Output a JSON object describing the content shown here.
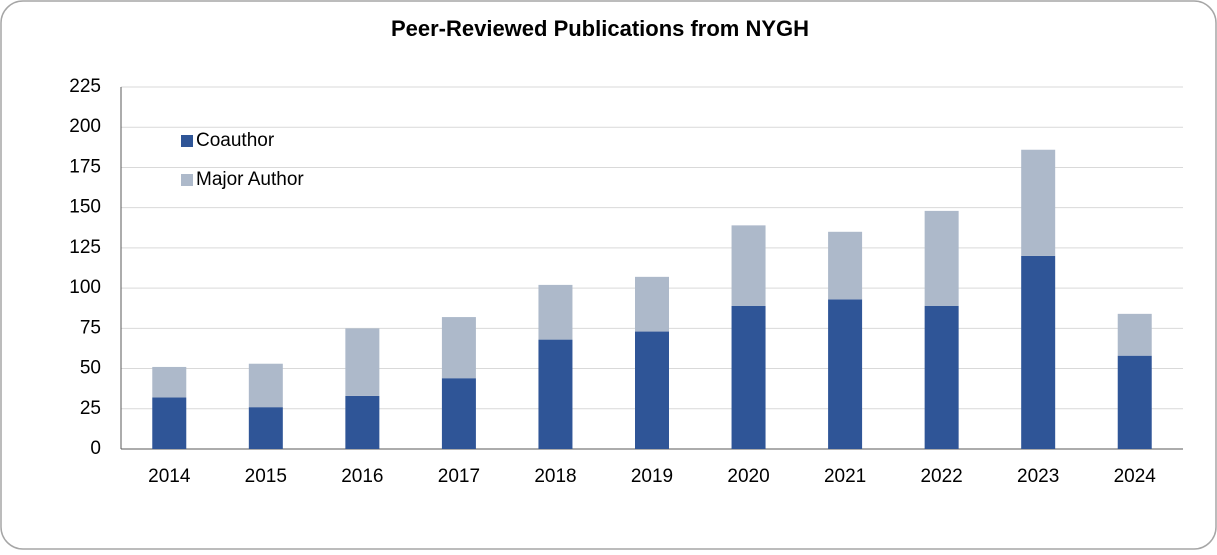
{
  "chart_data": {
    "type": "stacked_bar",
    "title": "Peer-Reviewed Publications from NYGH",
    "categories": [
      "2014",
      "2015",
      "2016",
      "2017",
      "2018",
      "2019",
      "2020",
      "2021",
      "2022",
      "2023",
      "2024"
    ],
    "series": [
      {
        "name": "Coauthor",
        "color": "#2f5597",
        "values": [
          32,
          26,
          33,
          44,
          68,
          73,
          89,
          93,
          89,
          120,
          58
        ]
      },
      {
        "name": "Major Author",
        "color": "#adb9ca",
        "values": [
          19,
          27,
          42,
          38,
          34,
          34,
          50,
          42,
          59,
          66,
          26
        ]
      }
    ],
    "ylim": [
      0,
      225
    ],
    "yticks": [
      0,
      25,
      50,
      75,
      100,
      125,
      150,
      175,
      200,
      225
    ],
    "grid": true,
    "legend": "top-left"
  }
}
